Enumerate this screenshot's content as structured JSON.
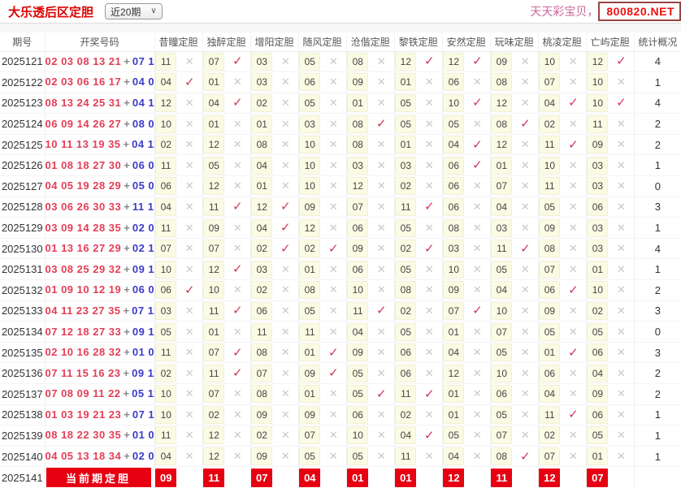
{
  "header": {
    "title": "大乐透后区定胆",
    "range_select": "近20期",
    "site_text": "天天彩宝贝，天",
    "site_badge": "800820.NET"
  },
  "table": {
    "col_period": "期号",
    "col_numbers": "开奖号码",
    "col_stat": "统计概况",
    "plus": "+",
    "check_glyph": "✓",
    "cross_glyph": "✕",
    "predictor_cols": [
      "昔瞳定胆",
      "独醉定胆",
      "增阳定胆",
      "随风定胆",
      "沧偕定胆",
      "黎铁定胆",
      "安然定胆",
      "玩味定胆",
      "桃凌定胆",
      "亡屿定胆"
    ],
    "rows": [
      {
        "period": "2025121",
        "front": "02 03 08 13 21",
        "back": "07 12",
        "stat": "4",
        "preds": [
          {
            "n": "11",
            "hit": false
          },
          {
            "n": "07",
            "hit": true
          },
          {
            "n": "03",
            "hit": false
          },
          {
            "n": "05",
            "hit": false
          },
          {
            "n": "08",
            "hit": false
          },
          {
            "n": "12",
            "hit": true
          },
          {
            "n": "12",
            "hit": true
          },
          {
            "n": "09",
            "hit": false
          },
          {
            "n": "10",
            "hit": false
          },
          {
            "n": "12",
            "hit": true
          }
        ]
      },
      {
        "period": "2025122",
        "front": "02 03 06 16 17",
        "back": "04 05",
        "stat": "1",
        "preds": [
          {
            "n": "04",
            "hit": true
          },
          {
            "n": "01",
            "hit": false
          },
          {
            "n": "03",
            "hit": false
          },
          {
            "n": "06",
            "hit": false
          },
          {
            "n": "09",
            "hit": false
          },
          {
            "n": "01",
            "hit": false
          },
          {
            "n": "06",
            "hit": false
          },
          {
            "n": "08",
            "hit": false
          },
          {
            "n": "07",
            "hit": false
          },
          {
            "n": "10",
            "hit": false
          }
        ]
      },
      {
        "period": "2025123",
        "front": "08 13 24 25 31",
        "back": "04 10",
        "stat": "4",
        "preds": [
          {
            "n": "12",
            "hit": false
          },
          {
            "n": "04",
            "hit": true
          },
          {
            "n": "02",
            "hit": false
          },
          {
            "n": "05",
            "hit": false
          },
          {
            "n": "01",
            "hit": false
          },
          {
            "n": "05",
            "hit": false
          },
          {
            "n": "10",
            "hit": true
          },
          {
            "n": "12",
            "hit": false
          },
          {
            "n": "04",
            "hit": true
          },
          {
            "n": "10",
            "hit": true
          }
        ]
      },
      {
        "period": "2025124",
        "front": "06 09 14 26 27",
        "back": "08 09",
        "stat": "2",
        "preds": [
          {
            "n": "10",
            "hit": false
          },
          {
            "n": "01",
            "hit": false
          },
          {
            "n": "01",
            "hit": false
          },
          {
            "n": "03",
            "hit": false
          },
          {
            "n": "08",
            "hit": true
          },
          {
            "n": "05",
            "hit": false
          },
          {
            "n": "05",
            "hit": false
          },
          {
            "n": "08",
            "hit": true
          },
          {
            "n": "02",
            "hit": false
          },
          {
            "n": "11",
            "hit": false
          }
        ]
      },
      {
        "period": "2025125",
        "front": "10 11 13 19 35",
        "back": "04 11",
        "stat": "2",
        "preds": [
          {
            "n": "02",
            "hit": false
          },
          {
            "n": "12",
            "hit": false
          },
          {
            "n": "08",
            "hit": false
          },
          {
            "n": "10",
            "hit": false
          },
          {
            "n": "08",
            "hit": false
          },
          {
            "n": "01",
            "hit": false
          },
          {
            "n": "04",
            "hit": true
          },
          {
            "n": "12",
            "hit": false
          },
          {
            "n": "11",
            "hit": true
          },
          {
            "n": "09",
            "hit": false
          }
        ]
      },
      {
        "period": "2025126",
        "front": "01 08 18 27 30",
        "back": "06 07",
        "stat": "1",
        "preds": [
          {
            "n": "11",
            "hit": false
          },
          {
            "n": "05",
            "hit": false
          },
          {
            "n": "04",
            "hit": false
          },
          {
            "n": "10",
            "hit": false
          },
          {
            "n": "03",
            "hit": false
          },
          {
            "n": "03",
            "hit": false
          },
          {
            "n": "06",
            "hit": true
          },
          {
            "n": "01",
            "hit": false
          },
          {
            "n": "10",
            "hit": false
          },
          {
            "n": "03",
            "hit": false
          }
        ]
      },
      {
        "period": "2025127",
        "front": "04 05 19 28 29",
        "back": "05 08",
        "stat": "0",
        "preds": [
          {
            "n": "06",
            "hit": false
          },
          {
            "n": "12",
            "hit": false
          },
          {
            "n": "01",
            "hit": false
          },
          {
            "n": "10",
            "hit": false
          },
          {
            "n": "12",
            "hit": false
          },
          {
            "n": "02",
            "hit": false
          },
          {
            "n": "06",
            "hit": false
          },
          {
            "n": "07",
            "hit": false
          },
          {
            "n": "11",
            "hit": false
          },
          {
            "n": "03",
            "hit": false
          }
        ]
      },
      {
        "period": "2025128",
        "front": "03 06 26 30 33",
        "back": "11 12",
        "stat": "3",
        "preds": [
          {
            "n": "04",
            "hit": false
          },
          {
            "n": "11",
            "hit": true
          },
          {
            "n": "12",
            "hit": true
          },
          {
            "n": "09",
            "hit": false
          },
          {
            "n": "07",
            "hit": false
          },
          {
            "n": "11",
            "hit": true
          },
          {
            "n": "06",
            "hit": false
          },
          {
            "n": "04",
            "hit": false
          },
          {
            "n": "05",
            "hit": false
          },
          {
            "n": "06",
            "hit": false
          }
        ]
      },
      {
        "period": "2025129",
        "front": "03 09 14 28 35",
        "back": "02 04",
        "stat": "1",
        "preds": [
          {
            "n": "11",
            "hit": false
          },
          {
            "n": "09",
            "hit": false
          },
          {
            "n": "04",
            "hit": true
          },
          {
            "n": "12",
            "hit": false
          },
          {
            "n": "06",
            "hit": false
          },
          {
            "n": "05",
            "hit": false
          },
          {
            "n": "08",
            "hit": false
          },
          {
            "n": "03",
            "hit": false
          },
          {
            "n": "09",
            "hit": false
          },
          {
            "n": "03",
            "hit": false
          }
        ]
      },
      {
        "period": "2025130",
        "front": "01 13 16 27 29",
        "back": "02 11",
        "stat": "4",
        "preds": [
          {
            "n": "07",
            "hit": false
          },
          {
            "n": "07",
            "hit": false
          },
          {
            "n": "02",
            "hit": true
          },
          {
            "n": "02",
            "hit": true
          },
          {
            "n": "09",
            "hit": false
          },
          {
            "n": "02",
            "hit": true
          },
          {
            "n": "03",
            "hit": false
          },
          {
            "n": "11",
            "hit": true
          },
          {
            "n": "08",
            "hit": false
          },
          {
            "n": "03",
            "hit": false
          }
        ]
      },
      {
        "period": "2025131",
        "front": "03 08 25 29 32",
        "back": "09 12",
        "stat": "1",
        "preds": [
          {
            "n": "10",
            "hit": false
          },
          {
            "n": "12",
            "hit": true
          },
          {
            "n": "03",
            "hit": false
          },
          {
            "n": "01",
            "hit": false
          },
          {
            "n": "06",
            "hit": false
          },
          {
            "n": "05",
            "hit": false
          },
          {
            "n": "10",
            "hit": false
          },
          {
            "n": "05",
            "hit": false
          },
          {
            "n": "07",
            "hit": false
          },
          {
            "n": "01",
            "hit": false
          }
        ]
      },
      {
        "period": "2025132",
        "front": "01 09 10 12 19",
        "back": "06 07",
        "stat": "2",
        "preds": [
          {
            "n": "06",
            "hit": true
          },
          {
            "n": "10",
            "hit": false
          },
          {
            "n": "02",
            "hit": false
          },
          {
            "n": "08",
            "hit": false
          },
          {
            "n": "10",
            "hit": false
          },
          {
            "n": "08",
            "hit": false
          },
          {
            "n": "09",
            "hit": false
          },
          {
            "n": "04",
            "hit": false
          },
          {
            "n": "06",
            "hit": true
          },
          {
            "n": "10",
            "hit": false
          }
        ]
      },
      {
        "period": "2025133",
        "front": "04 11 23 27 35",
        "back": "07 11",
        "stat": "3",
        "preds": [
          {
            "n": "03",
            "hit": false
          },
          {
            "n": "11",
            "hit": true
          },
          {
            "n": "06",
            "hit": false
          },
          {
            "n": "05",
            "hit": false
          },
          {
            "n": "11",
            "hit": true
          },
          {
            "n": "02",
            "hit": false
          },
          {
            "n": "07",
            "hit": true
          },
          {
            "n": "10",
            "hit": false
          },
          {
            "n": "09",
            "hit": false
          },
          {
            "n": "02",
            "hit": false
          }
        ]
      },
      {
        "period": "2025134",
        "front": "07 12 18 27 33",
        "back": "09 10",
        "stat": "0",
        "preds": [
          {
            "n": "05",
            "hit": false
          },
          {
            "n": "01",
            "hit": false
          },
          {
            "n": "11",
            "hit": false
          },
          {
            "n": "11",
            "hit": false
          },
          {
            "n": "04",
            "hit": false
          },
          {
            "n": "05",
            "hit": false
          },
          {
            "n": "01",
            "hit": false
          },
          {
            "n": "07",
            "hit": false
          },
          {
            "n": "05",
            "hit": false
          },
          {
            "n": "05",
            "hit": false
          }
        ]
      },
      {
        "period": "2025135",
        "front": "02 10 16 28 32",
        "back": "01 07",
        "stat": "3",
        "preds": [
          {
            "n": "11",
            "hit": false
          },
          {
            "n": "07",
            "hit": true
          },
          {
            "n": "08",
            "hit": false
          },
          {
            "n": "01",
            "hit": true
          },
          {
            "n": "09",
            "hit": false
          },
          {
            "n": "06",
            "hit": false
          },
          {
            "n": "04",
            "hit": false
          },
          {
            "n": "05",
            "hit": false
          },
          {
            "n": "01",
            "hit": true
          },
          {
            "n": "06",
            "hit": false
          }
        ]
      },
      {
        "period": "2025136",
        "front": "07 11 15 16 23",
        "back": "09 11",
        "stat": "2",
        "preds": [
          {
            "n": "02",
            "hit": false
          },
          {
            "n": "11",
            "hit": true
          },
          {
            "n": "07",
            "hit": false
          },
          {
            "n": "09",
            "hit": true
          },
          {
            "n": "05",
            "hit": false
          },
          {
            "n": "06",
            "hit": false
          },
          {
            "n": "12",
            "hit": false
          },
          {
            "n": "10",
            "hit": false
          },
          {
            "n": "06",
            "hit": false
          },
          {
            "n": "04",
            "hit": false
          }
        ]
      },
      {
        "period": "2025137",
        "front": "07 08 09 11 22",
        "back": "05 11",
        "stat": "2",
        "preds": [
          {
            "n": "10",
            "hit": false
          },
          {
            "n": "07",
            "hit": false
          },
          {
            "n": "08",
            "hit": false
          },
          {
            "n": "01",
            "hit": false
          },
          {
            "n": "05",
            "hit": true
          },
          {
            "n": "11",
            "hit": true
          },
          {
            "n": "01",
            "hit": false
          },
          {
            "n": "06",
            "hit": false
          },
          {
            "n": "04",
            "hit": false
          },
          {
            "n": "09",
            "hit": false
          }
        ]
      },
      {
        "period": "2025138",
        "front": "01 03 19 21 23",
        "back": "07 11",
        "stat": "1",
        "preds": [
          {
            "n": "10",
            "hit": false
          },
          {
            "n": "02",
            "hit": false
          },
          {
            "n": "09",
            "hit": false
          },
          {
            "n": "09",
            "hit": false
          },
          {
            "n": "06",
            "hit": false
          },
          {
            "n": "02",
            "hit": false
          },
          {
            "n": "01",
            "hit": false
          },
          {
            "n": "05",
            "hit": false
          },
          {
            "n": "11",
            "hit": true
          },
          {
            "n": "06",
            "hit": false
          }
        ]
      },
      {
        "period": "2025139",
        "front": "08 18 22 30 35",
        "back": "01 04",
        "stat": "1",
        "preds": [
          {
            "n": "11",
            "hit": false
          },
          {
            "n": "12",
            "hit": false
          },
          {
            "n": "02",
            "hit": false
          },
          {
            "n": "07",
            "hit": false
          },
          {
            "n": "10",
            "hit": false
          },
          {
            "n": "04",
            "hit": true
          },
          {
            "n": "05",
            "hit": false
          },
          {
            "n": "07",
            "hit": false
          },
          {
            "n": "02",
            "hit": false
          },
          {
            "n": "05",
            "hit": false
          }
        ]
      },
      {
        "period": "2025140",
        "front": "04 05 13 18 34",
        "back": "02 08",
        "stat": "1",
        "preds": [
          {
            "n": "04",
            "hit": false
          },
          {
            "n": "12",
            "hit": false
          },
          {
            "n": "09",
            "hit": false
          },
          {
            "n": "05",
            "hit": false
          },
          {
            "n": "05",
            "hit": false
          },
          {
            "n": "11",
            "hit": false
          },
          {
            "n": "04",
            "hit": false
          },
          {
            "n": "08",
            "hit": true
          },
          {
            "n": "07",
            "hit": false
          },
          {
            "n": "01",
            "hit": false
          }
        ]
      }
    ],
    "current_row": {
      "period": "2025141",
      "banner": "当前期定胆",
      "preds": [
        "09",
        "11",
        "07",
        "04",
        "01",
        "01",
        "12",
        "11",
        "12",
        "07"
      ]
    }
  },
  "colors": {
    "accent_red": "#e60012",
    "title_red": "#dd0000",
    "hit_mark": "#cf3759",
    "miss_mark": "#c9c9c9",
    "front_number": "#e43e55",
    "back_number": "#3b3bc8",
    "number_cell_bg": "#fbfbe4",
    "slogan_pink": "#cc6699"
  }
}
